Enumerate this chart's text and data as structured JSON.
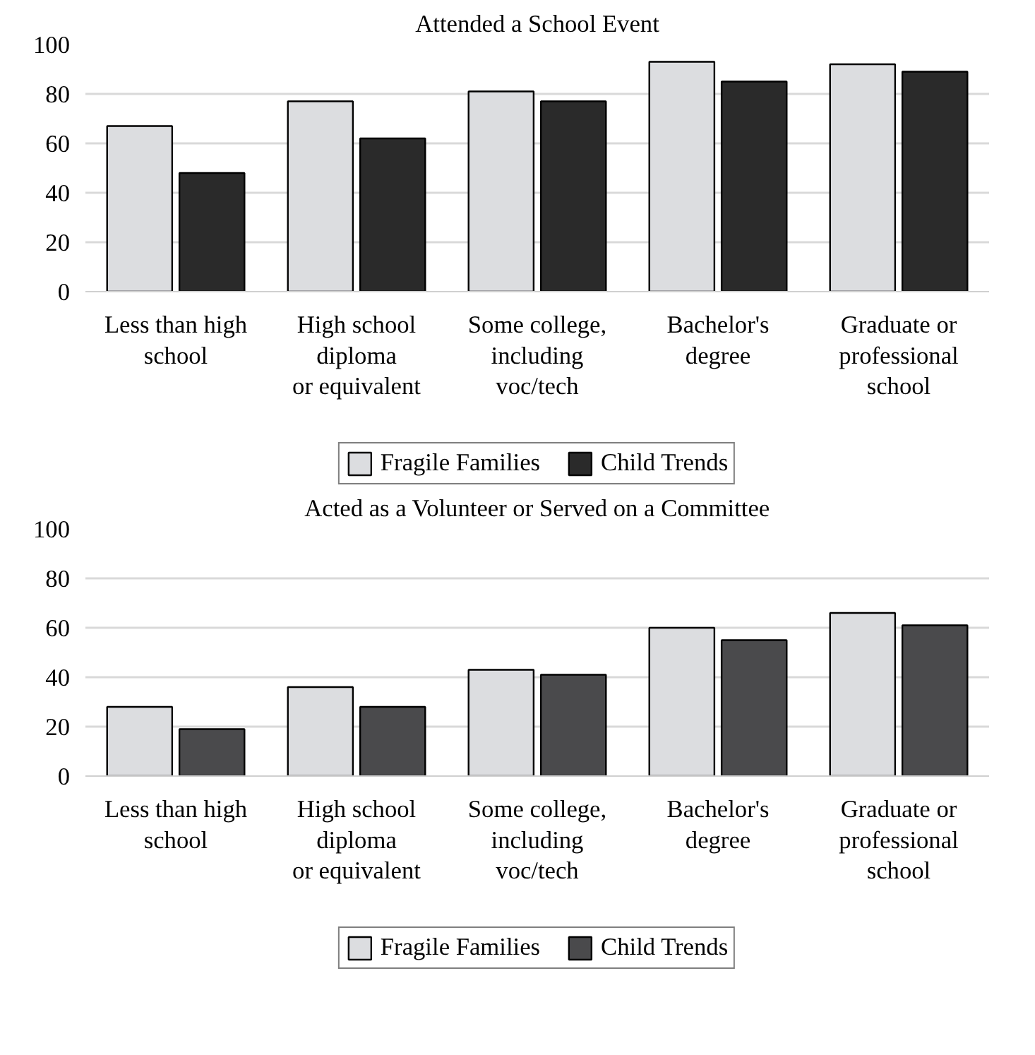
{
  "chart_data": [
    {
      "type": "bar",
      "title": "Attended a School Event",
      "categories": [
        "Less than high\nschool",
        "High school\ndiploma\nor equivalent",
        "Some college,\nincluding\nvoc/tech",
        "Bachelor's\ndegree",
        "Graduate or\nprofessional\nschool"
      ],
      "series": [
        {
          "name": "Fragile Families",
          "color": "#dcdde0",
          "values": [
            67,
            77,
            81,
            93,
            92
          ]
        },
        {
          "name": "Child Trends",
          "color": "#2a2a2a",
          "values": [
            48,
            62,
            77,
            85,
            89
          ]
        }
      ],
      "ylim": [
        0,
        100
      ],
      "yticks": [
        0,
        20,
        40,
        60,
        80,
        100
      ],
      "grid": "y",
      "legend": "bottom"
    },
    {
      "type": "bar",
      "title": "Acted as a Volunteer or Served on a Committee",
      "categories": [
        "Less than high\nschool",
        "High school\ndiploma\nor equivalent",
        "Some college,\nincluding\nvoc/tech",
        "Bachelor's\ndegree",
        "Graduate or\nprofessional\nschool"
      ],
      "series": [
        {
          "name": "Fragile Families",
          "color": "#dcdde0",
          "values": [
            28,
            36,
            43,
            60,
            66
          ]
        },
        {
          "name": "Child Trends",
          "color": "#4a4a4c",
          "values": [
            19,
            28,
            41,
            55,
            61
          ]
        }
      ],
      "ylim": [
        0,
        100
      ],
      "yticks": [
        0,
        20,
        40,
        60,
        80,
        100
      ],
      "grid": "y",
      "legend": "bottom"
    }
  ]
}
